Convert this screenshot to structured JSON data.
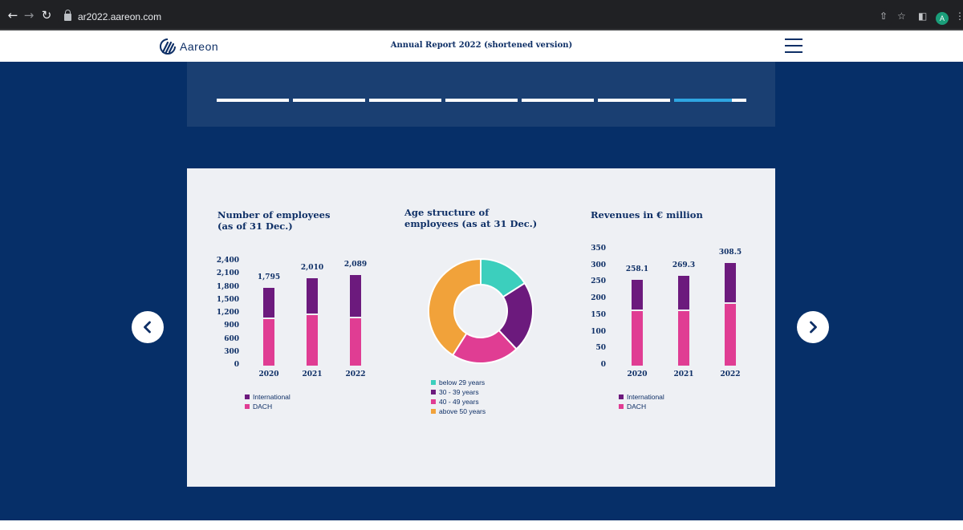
{
  "browser": {
    "url": "ar2022.aareon.com",
    "profile_initial": "A"
  },
  "header": {
    "logo_text": "Aareon",
    "title": "Annual Report 2022 (shortened version)"
  },
  "colors": {
    "navy": "#062f68",
    "international": "#6c1a7d",
    "dach": "#e03d93",
    "teal": "#3ccfbd",
    "orange": "#f1a23a",
    "progress_active": "#2fa6e2"
  },
  "progress": {
    "segments": 7,
    "active_index": 6,
    "active_fill_fraction": 0.8
  },
  "chart_data": [
    {
      "type": "bar",
      "stacked": true,
      "title": "Number of employees\n(as of 31 Dec.)",
      "categories": [
        "2020",
        "2021",
        "2022"
      ],
      "yticks": [
        "2,400",
        "2,100",
        "1,800",
        "1,500",
        "1,200",
        "900",
        "600",
        "300",
        "0"
      ],
      "ylim": [
        0,
        2400
      ],
      "totals": [
        "1,795",
        "2,010",
        "2,089"
      ],
      "series": [
        {
          "name": "International",
          "values": [
            725,
            850,
            1000
          ]
        },
        {
          "name": "DACH",
          "values": [
            1070,
            1160,
            1089
          ]
        }
      ],
      "legend": [
        "International",
        "DACH"
      ]
    },
    {
      "type": "pie",
      "donut": true,
      "title": "Age structure of\nemployees (as at 31 Dec.)",
      "labels": [
        "below 29 years",
        "30 - 39 years",
        "40 - 49 years",
        "above 50 years"
      ],
      "values": [
        16,
        22,
        21,
        41
      ]
    },
    {
      "type": "bar",
      "stacked": true,
      "title": "Revenues in € million",
      "categories": [
        "2020",
        "2021",
        "2022"
      ],
      "yticks": [
        "350",
        "300",
        "250",
        "200",
        "150",
        "100",
        "50",
        "0"
      ],
      "ylim": [
        0,
        350
      ],
      "totals": [
        "258.1",
        "269.3",
        "308.5"
      ],
      "series": [
        {
          "name": "International",
          "values": [
            94,
            105,
            123
          ]
        },
        {
          "name": "DACH",
          "values": [
            164.1,
            164.3,
            185.5
          ]
        }
      ],
      "legend": [
        "International",
        "DACH"
      ]
    }
  ]
}
